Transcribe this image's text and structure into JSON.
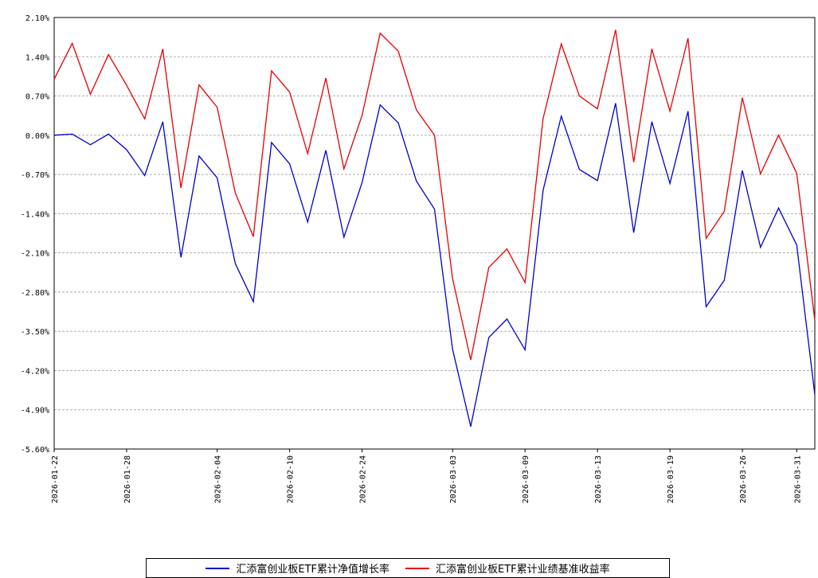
{
  "chart_data": {
    "type": "line",
    "title": "",
    "xlabel": "",
    "ylabel": "",
    "ylim": [
      -5.6,
      2.1
    ],
    "y_ticks": [
      "2.10%",
      "1.40%",
      "0.70%",
      "0.00%",
      "-0.70%",
      "-1.40%",
      "-2.10%",
      "-2.80%",
      "-3.50%",
      "-4.20%",
      "-4.90%",
      "-5.60%"
    ],
    "x_tick_labels": [
      {
        "index": 0,
        "label": "2026-01-22"
      },
      {
        "index": 4,
        "label": "2026-01-28"
      },
      {
        "index": 9,
        "label": "2026-02-04"
      },
      {
        "index": 13,
        "label": "2026-02-10"
      },
      {
        "index": 17,
        "label": "2026-02-24"
      },
      {
        "index": 22,
        "label": "2026-03-03"
      },
      {
        "index": 26,
        "label": "2026-03-09"
      },
      {
        "index": 30,
        "label": "2026-03-13"
      },
      {
        "index": 34,
        "label": "2026-03-19"
      },
      {
        "index": 38,
        "label": "2026-03-26"
      },
      {
        "index": 41,
        "label": "2026-03-31"
      }
    ],
    "grid": true,
    "legend_position": "bottom",
    "series": [
      {
        "name": "汇添富创业板ETF累计净值增长率",
        "color": "#0000cc",
        "values": [
          0.0,
          0.02,
          -0.17,
          0.02,
          -0.26,
          -0.72,
          0.24,
          -2.18,
          -0.37,
          -0.76,
          -2.29,
          -2.97,
          -0.13,
          -0.51,
          -1.55,
          -0.27,
          -1.82,
          -0.85,
          0.54,
          0.22,
          -0.82,
          -1.32,
          -3.82,
          -5.2,
          -3.61,
          -3.28,
          -3.83,
          -0.98,
          0.34,
          -0.61,
          -0.81,
          0.57,
          -1.74,
          0.24,
          -0.86,
          0.43,
          -3.06,
          -2.59,
          -0.63,
          -2.0,
          -1.3,
          -1.96,
          -4.63
        ]
      },
      {
        "name": "汇添富创业板ETF累计业绩基准收益率",
        "color": "#e60000",
        "values": [
          1.0,
          1.64,
          0.73,
          1.44,
          0.89,
          0.29,
          1.54,
          -0.94,
          0.9,
          0.5,
          -1.03,
          -1.81,
          1.15,
          0.77,
          -0.33,
          1.02,
          -0.6,
          0.35,
          1.82,
          1.5,
          0.45,
          0.0,
          -2.56,
          -4.01,
          -2.36,
          -2.03,
          -2.63,
          0.3,
          1.63,
          0.7,
          0.47,
          1.88,
          -0.48,
          1.54,
          0.43,
          1.73,
          -1.84,
          -1.36,
          0.67,
          -0.69,
          0.0,
          -0.68,
          -3.3
        ]
      }
    ]
  }
}
